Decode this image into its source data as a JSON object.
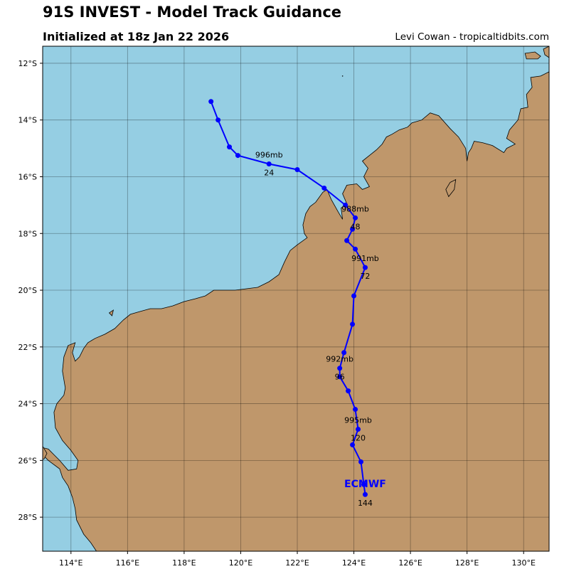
{
  "header": {
    "title": "91S INVEST - Model Track Guidance",
    "subtitle": "Initialized at 18z Jan 22 2026",
    "credit": "Levi Cowan - tropicaltidbits.com"
  },
  "colors": {
    "ocean": "#95cee3",
    "land": "#bf976b",
    "track": "#0000ff",
    "grid": "#000000"
  },
  "map": {
    "lon_range": [
      113.0,
      130.9
    ],
    "lat_range": [
      -29.2,
      -11.4
    ],
    "lon_ticks": [
      {
        "value": 114,
        "label": "114°E"
      },
      {
        "value": 116,
        "label": "116°E"
      },
      {
        "value": 118,
        "label": "118°E"
      },
      {
        "value": 120,
        "label": "120°E"
      },
      {
        "value": 122,
        "label": "122°E"
      },
      {
        "value": 124,
        "label": "124°E"
      },
      {
        "value": 126,
        "label": "126°E"
      },
      {
        "value": 128,
        "label": "128°E"
      },
      {
        "value": 130,
        "label": "130°E"
      }
    ],
    "lat_ticks": [
      {
        "value": -12,
        "label": "12°S"
      },
      {
        "value": -14,
        "label": "14°S"
      },
      {
        "value": -16,
        "label": "16°S"
      },
      {
        "value": -18,
        "label": "18°S"
      },
      {
        "value": -20,
        "label": "20°S"
      },
      {
        "value": -22,
        "label": "22°S"
      },
      {
        "value": -24,
        "label": "24°S"
      },
      {
        "value": -26,
        "label": "26°S"
      },
      {
        "value": -28,
        "label": "28°S"
      }
    ]
  },
  "chart_data": {
    "type": "line",
    "model": "ECMWF",
    "track": [
      {
        "lon": 118.95,
        "lat": -13.35
      },
      {
        "lon": 119.2,
        "lat": -14.0
      },
      {
        "lon": 119.6,
        "lat": -14.95
      },
      {
        "lon": 119.9,
        "lat": -15.25
      },
      {
        "lon": 121.0,
        "lat": -15.55
      },
      {
        "lon": 122.0,
        "lat": -15.75
      },
      {
        "lon": 122.95,
        "lat": -16.4
      },
      {
        "lon": 123.7,
        "lat": -17.0
      },
      {
        "lon": 124.05,
        "lat": -17.45
      },
      {
        "lon": 123.95,
        "lat": -17.85
      },
      {
        "lon": 123.75,
        "lat": -18.25
      },
      {
        "lon": 124.05,
        "lat": -18.55
      },
      {
        "lon": 124.4,
        "lat": -19.2
      },
      {
        "lon": 124.0,
        "lat": -20.2
      },
      {
        "lon": 123.95,
        "lat": -21.2
      },
      {
        "lon": 123.65,
        "lat": -22.2
      },
      {
        "lon": 123.5,
        "lat": -22.75
      },
      {
        "lon": 123.5,
        "lat": -23.05
      },
      {
        "lon": 123.8,
        "lat": -23.55
      },
      {
        "lon": 124.05,
        "lat": -24.2
      },
      {
        "lon": 124.15,
        "lat": -24.9
      },
      {
        "lon": 123.95,
        "lat": -25.45
      },
      {
        "lon": 124.25,
        "lat": -26.05
      },
      {
        "lon": 124.35,
        "lat": -26.85
      },
      {
        "lon": 124.4,
        "lat": -27.2
      }
    ],
    "pressure_labels": [
      {
        "text": "996mb",
        "lon": 121.0,
        "lat": -15.55
      },
      {
        "text": "988mb",
        "lon": 124.05,
        "lat": -17.45
      },
      {
        "text": "991mb",
        "lon": 124.4,
        "lat": -19.2
      },
      {
        "text": "992mb",
        "lon": 123.5,
        "lat": -22.75
      },
      {
        "text": "995mb",
        "lon": 124.15,
        "lat": -24.9
      }
    ],
    "hour_labels": [
      {
        "text": "24",
        "lon": 121.0,
        "lat": -15.55
      },
      {
        "text": "48",
        "lon": 124.05,
        "lat": -17.45
      },
      {
        "text": "72",
        "lon": 124.4,
        "lat": -19.2
      },
      {
        "text": "96",
        "lon": 123.5,
        "lat": -22.75
      },
      {
        "text": "120",
        "lon": 124.15,
        "lat": -24.9
      },
      {
        "text": "144",
        "lon": 124.4,
        "lat": -27.2
      }
    ]
  },
  "coastline": {
    "mainland": [
      [
        113.0,
        -25.8
      ],
      [
        113.2,
        -26.0
      ],
      [
        113.6,
        -26.3
      ],
      [
        113.7,
        -26.6
      ],
      [
        113.9,
        -26.9
      ],
      [
        114.05,
        -27.3
      ],
      [
        114.15,
        -27.7
      ],
      [
        114.2,
        -28.1
      ],
      [
        114.45,
        -28.6
      ],
      [
        114.7,
        -28.9
      ],
      [
        114.9,
        -29.2
      ],
      [
        130.9,
        -29.2
      ],
      [
        130.9,
        -12.3
      ],
      [
        130.6,
        -12.45
      ],
      [
        130.25,
        -12.5
      ],
      [
        130.3,
        -12.85
      ],
      [
        130.1,
        -13.1
      ],
      [
        130.15,
        -13.55
      ],
      [
        129.9,
        -13.6
      ],
      [
        129.8,
        -14.0
      ],
      [
        129.5,
        -14.35
      ],
      [
        129.4,
        -14.65
      ],
      [
        129.7,
        -14.85
      ],
      [
        129.4,
        -15.0
      ],
      [
        129.3,
        -15.15
      ],
      [
        128.9,
        -14.9
      ],
      [
        128.55,
        -14.8
      ],
      [
        128.25,
        -14.75
      ],
      [
        128.15,
        -15.0
      ],
      [
        128.05,
        -15.15
      ],
      [
        128.0,
        -15.45
      ],
      [
        127.95,
        -15.0
      ],
      [
        127.7,
        -14.6
      ],
      [
        127.4,
        -14.3
      ],
      [
        127.0,
        -13.85
      ],
      [
        126.7,
        -13.75
      ],
      [
        126.4,
        -14.0
      ],
      [
        126.05,
        -14.1
      ],
      [
        125.9,
        -14.25
      ],
      [
        125.6,
        -14.35
      ],
      [
        125.35,
        -14.5
      ],
      [
        125.15,
        -14.6
      ],
      [
        125.0,
        -14.85
      ],
      [
        124.8,
        -15.05
      ],
      [
        124.55,
        -15.25
      ],
      [
        124.3,
        -15.45
      ],
      [
        124.5,
        -15.7
      ],
      [
        124.35,
        -16.0
      ],
      [
        124.55,
        -16.35
      ],
      [
        124.3,
        -16.45
      ],
      [
        124.1,
        -16.25
      ],
      [
        123.75,
        -16.3
      ],
      [
        123.6,
        -16.6
      ],
      [
        123.75,
        -16.95
      ],
      [
        123.55,
        -17.1
      ],
      [
        123.6,
        -17.5
      ],
      [
        123.45,
        -17.25
      ],
      [
        123.2,
        -16.8
      ],
      [
        123.05,
        -16.45
      ],
      [
        122.9,
        -16.55
      ],
      [
        122.65,
        -16.9
      ],
      [
        122.45,
        -17.05
      ],
      [
        122.3,
        -17.3
      ],
      [
        122.2,
        -17.7
      ],
      [
        122.25,
        -18.0
      ],
      [
        122.35,
        -18.15
      ],
      [
        122.0,
        -18.4
      ],
      [
        121.75,
        -18.6
      ],
      [
        121.55,
        -19.0
      ],
      [
        121.35,
        -19.45
      ],
      [
        121.0,
        -19.7
      ],
      [
        120.6,
        -19.9
      ],
      [
        120.2,
        -19.95
      ],
      [
        119.8,
        -20.0
      ],
      [
        119.4,
        -20.0
      ],
      [
        119.05,
        -20.0
      ],
      [
        118.75,
        -20.2
      ],
      [
        118.4,
        -20.3
      ],
      [
        118.0,
        -20.4
      ],
      [
        117.6,
        -20.55
      ],
      [
        117.2,
        -20.65
      ],
      [
        116.8,
        -20.65
      ],
      [
        116.45,
        -20.75
      ],
      [
        116.1,
        -20.85
      ],
      [
        115.85,
        -21.05
      ],
      [
        115.55,
        -21.35
      ],
      [
        115.2,
        -21.55
      ],
      [
        114.85,
        -21.7
      ],
      [
        114.6,
        -21.85
      ],
      [
        114.45,
        -22.05
      ],
      [
        114.3,
        -22.35
      ],
      [
        114.15,
        -22.5
      ],
      [
        114.05,
        -22.2
      ],
      [
        114.15,
        -21.85
      ],
      [
        113.9,
        -21.95
      ],
      [
        113.75,
        -22.35
      ],
      [
        113.7,
        -22.85
      ],
      [
        113.8,
        -23.45
      ],
      [
        113.75,
        -23.7
      ],
      [
        113.5,
        -24.0
      ],
      [
        113.4,
        -24.3
      ],
      [
        113.45,
        -24.85
      ],
      [
        113.7,
        -25.3
      ],
      [
        114.0,
        -25.65
      ],
      [
        114.25,
        -26.0
      ],
      [
        114.2,
        -26.3
      ],
      [
        113.9,
        -26.35
      ],
      [
        113.6,
        -26.0
      ],
      [
        113.4,
        -25.8
      ],
      [
        113.2,
        -25.6
      ],
      [
        113.0,
        -25.55
      ]
    ],
    "islands": [
      [
        [
          113.0,
          -25.5
        ],
        [
          113.15,
          -25.75
        ],
        [
          113.05,
          -25.95
        ],
        [
          113.0,
          -25.95
        ]
      ],
      [
        [
          115.35,
          -20.8
        ],
        [
          115.5,
          -20.7
        ],
        [
          115.45,
          -20.9
        ]
      ],
      [
        [
          127.4,
          -16.2
        ],
        [
          127.6,
          -16.1
        ],
        [
          127.55,
          -16.45
        ],
        [
          127.35,
          -16.7
        ],
        [
          127.25,
          -16.45
        ]
      ],
      [
        [
          130.05,
          -11.65
        ],
        [
          130.4,
          -11.6
        ],
        [
          130.6,
          -11.75
        ],
        [
          130.5,
          -11.85
        ],
        [
          130.1,
          -11.85
        ]
      ],
      [
        [
          130.7,
          -11.5
        ],
        [
          130.9,
          -11.4
        ],
        [
          130.9,
          -11.8
        ],
        [
          130.75,
          -11.7
        ]
      ]
    ]
  }
}
